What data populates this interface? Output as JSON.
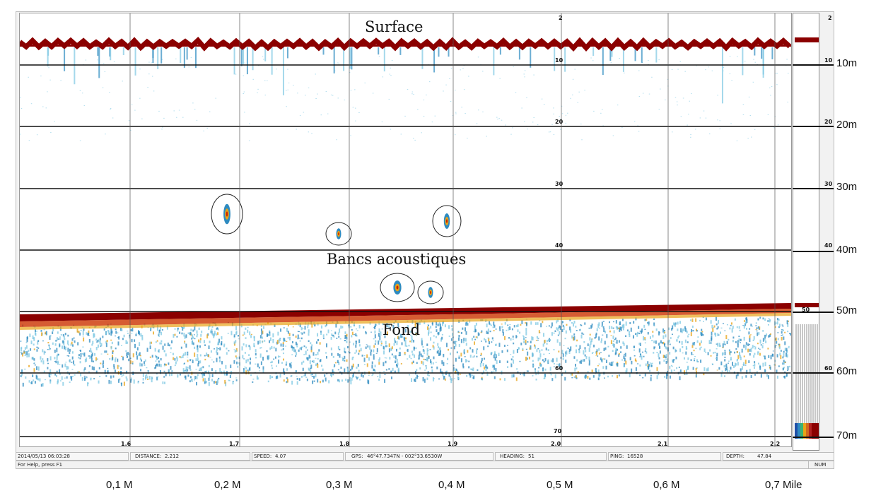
{
  "annotations": {
    "surface": "Surface",
    "schools": "Bancs acoustiques",
    "bottom": "Fond"
  },
  "depth_scale_outer": [
    "10m",
    "20m",
    "30m",
    "40m",
    "50m",
    "60m",
    "70m"
  ],
  "depth_ticks_inner": [
    "2",
    "10",
    "20",
    "30",
    "40",
    "50",
    "60",
    "70"
  ],
  "distance_ticks": [
    "1.6",
    "1.7",
    "1.8",
    "1.9",
    "2.0",
    "2.1",
    "2.2"
  ],
  "mile_labels": [
    "0,1 M",
    "0,2 M",
    "0,3 M",
    "0,4 M",
    "0,5 M",
    "0,6 M",
    "0,7 Mile"
  ],
  "status_bar": {
    "datetime": "2014/05/13 06:03:28",
    "distance_label": "DISTANCE:",
    "distance_value": "2.212",
    "speed_label": "SPEED:",
    "speed_value": "4.07",
    "gps_label": "GPS:",
    "gps_value": "46°47.7347N - 002°33.6530W",
    "heading_label": "HEADING:",
    "heading_value": "51",
    "ping_label": "PING:",
    "ping_value": "16528",
    "depth_label": "DEPTH:",
    "depth_value": "47.84",
    "help_text": "For Help, press F1",
    "num_indicator": "NUM"
  },
  "colors": {
    "strong_echo": "#8b0000",
    "medium_echo": "#e8a317",
    "weak_echo": "#2e8bc0",
    "very_weak_echo": "#7ec8e3",
    "grid": "#111111"
  }
}
